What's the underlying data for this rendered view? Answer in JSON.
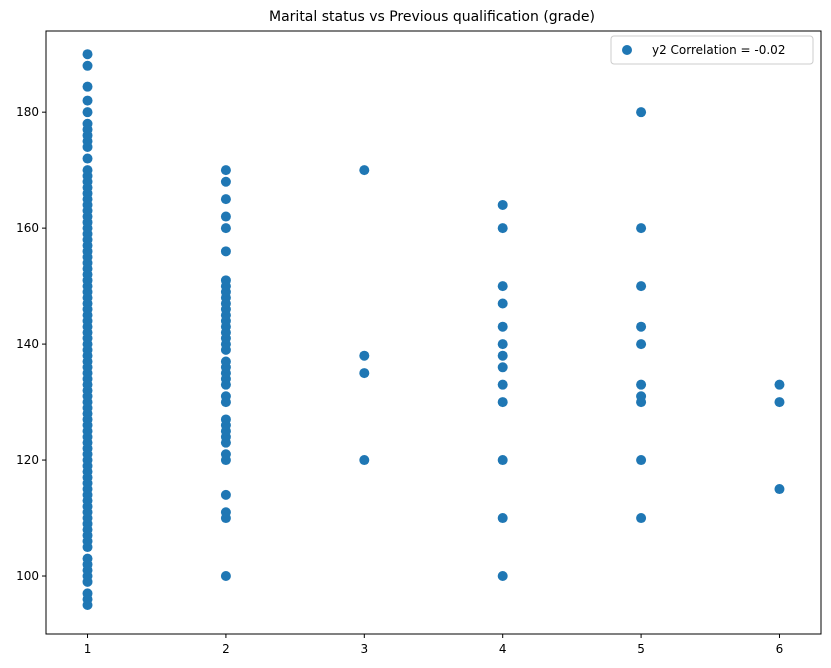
{
  "chart_data": {
    "type": "scatter",
    "title": "Marital status vs Previous qualification (grade)",
    "xlabel": "",
    "ylabel": "",
    "xlim": [
      0.7,
      6.3
    ],
    "ylim": [
      90,
      194
    ],
    "xticks": [
      1,
      2,
      3,
      4,
      5,
      6
    ],
    "yticks": [
      100,
      120,
      140,
      160,
      180
    ],
    "grid": false,
    "legend_position": "top-right",
    "marker_color": "#1f77b4",
    "series": [
      {
        "name": "y2 Correlation = -0.02",
        "points": [
          {
            "x": 1,
            "y": 95
          },
          {
            "x": 1,
            "y": 96
          },
          {
            "x": 1,
            "y": 97
          },
          {
            "x": 1,
            "y": 99
          },
          {
            "x": 1,
            "y": 100
          },
          {
            "x": 1,
            "y": 101
          },
          {
            "x": 1,
            "y": 102
          },
          {
            "x": 1,
            "y": 103
          },
          {
            "x": 1,
            "y": 105
          },
          {
            "x": 1,
            "y": 106
          },
          {
            "x": 1,
            "y": 107
          },
          {
            "x": 1,
            "y": 108
          },
          {
            "x": 1,
            "y": 109
          },
          {
            "x": 1,
            "y": 110
          },
          {
            "x": 1,
            "y": 111
          },
          {
            "x": 1,
            "y": 112
          },
          {
            "x": 1,
            "y": 113
          },
          {
            "x": 1,
            "y": 114
          },
          {
            "x": 1,
            "y": 115
          },
          {
            "x": 1,
            "y": 116
          },
          {
            "x": 1,
            "y": 117
          },
          {
            "x": 1,
            "y": 118
          },
          {
            "x": 1,
            "y": 119
          },
          {
            "x": 1,
            "y": 120
          },
          {
            "x": 1,
            "y": 121
          },
          {
            "x": 1,
            "y": 122
          },
          {
            "x": 1,
            "y": 123
          },
          {
            "x": 1,
            "y": 124
          },
          {
            "x": 1,
            "y": 125
          },
          {
            "x": 1,
            "y": 126
          },
          {
            "x": 1,
            "y": 127
          },
          {
            "x": 1,
            "y": 128
          },
          {
            "x": 1,
            "y": 129
          },
          {
            "x": 1,
            "y": 130
          },
          {
            "x": 1,
            "y": 131
          },
          {
            "x": 1,
            "y": 132
          },
          {
            "x": 1,
            "y": 133
          },
          {
            "x": 1,
            "y": 134
          },
          {
            "x": 1,
            "y": 135
          },
          {
            "x": 1,
            "y": 136
          },
          {
            "x": 1,
            "y": 137
          },
          {
            "x": 1,
            "y": 138
          },
          {
            "x": 1,
            "y": 139
          },
          {
            "x": 1,
            "y": 140
          },
          {
            "x": 1,
            "y": 141
          },
          {
            "x": 1,
            "y": 142
          },
          {
            "x": 1,
            "y": 143
          },
          {
            "x": 1,
            "y": 144
          },
          {
            "x": 1,
            "y": 145
          },
          {
            "x": 1,
            "y": 146
          },
          {
            "x": 1,
            "y": 147
          },
          {
            "x": 1,
            "y": 148
          },
          {
            "x": 1,
            "y": 149
          },
          {
            "x": 1,
            "y": 150
          },
          {
            "x": 1,
            "y": 151
          },
          {
            "x": 1,
            "y": 152
          },
          {
            "x": 1,
            "y": 153
          },
          {
            "x": 1,
            "y": 154
          },
          {
            "x": 1,
            "y": 155
          },
          {
            "x": 1,
            "y": 156
          },
          {
            "x": 1,
            "y": 157
          },
          {
            "x": 1,
            "y": 158
          },
          {
            "x": 1,
            "y": 159
          },
          {
            "x": 1,
            "y": 160
          },
          {
            "x": 1,
            "y": 161
          },
          {
            "x": 1,
            "y": 162
          },
          {
            "x": 1,
            "y": 163
          },
          {
            "x": 1,
            "y": 164
          },
          {
            "x": 1,
            "y": 165
          },
          {
            "x": 1,
            "y": 166
          },
          {
            "x": 1,
            "y": 167
          },
          {
            "x": 1,
            "y": 168
          },
          {
            "x": 1,
            "y": 169
          },
          {
            "x": 1,
            "y": 170
          },
          {
            "x": 1,
            "y": 172
          },
          {
            "x": 1,
            "y": 174
          },
          {
            "x": 1,
            "y": 175
          },
          {
            "x": 1,
            "y": 176
          },
          {
            "x": 1,
            "y": 177
          },
          {
            "x": 1,
            "y": 178
          },
          {
            "x": 1,
            "y": 180
          },
          {
            "x": 1,
            "y": 182
          },
          {
            "x": 1,
            "y": 184.4
          },
          {
            "x": 1,
            "y": 188
          },
          {
            "x": 1,
            "y": 190
          },
          {
            "x": 2,
            "y": 100
          },
          {
            "x": 2,
            "y": 110
          },
          {
            "x": 2,
            "y": 111
          },
          {
            "x": 2,
            "y": 114
          },
          {
            "x": 2,
            "y": 120
          },
          {
            "x": 2,
            "y": 121
          },
          {
            "x": 2,
            "y": 123
          },
          {
            "x": 2,
            "y": 124
          },
          {
            "x": 2,
            "y": 125
          },
          {
            "x": 2,
            "y": 126
          },
          {
            "x": 2,
            "y": 127
          },
          {
            "x": 2,
            "y": 130
          },
          {
            "x": 2,
            "y": 131
          },
          {
            "x": 2,
            "y": 133
          },
          {
            "x": 2,
            "y": 134
          },
          {
            "x": 2,
            "y": 135
          },
          {
            "x": 2,
            "y": 136
          },
          {
            "x": 2,
            "y": 137
          },
          {
            "x": 2,
            "y": 139
          },
          {
            "x": 2,
            "y": 140
          },
          {
            "x": 2,
            "y": 141
          },
          {
            "x": 2,
            "y": 142
          },
          {
            "x": 2,
            "y": 143
          },
          {
            "x": 2,
            "y": 144
          },
          {
            "x": 2,
            "y": 145
          },
          {
            "x": 2,
            "y": 146
          },
          {
            "x": 2,
            "y": 147
          },
          {
            "x": 2,
            "y": 148
          },
          {
            "x": 2,
            "y": 149
          },
          {
            "x": 2,
            "y": 150
          },
          {
            "x": 2,
            "y": 151
          },
          {
            "x": 2,
            "y": 156
          },
          {
            "x": 2,
            "y": 160
          },
          {
            "x": 2,
            "y": 162
          },
          {
            "x": 2,
            "y": 165
          },
          {
            "x": 2,
            "y": 168
          },
          {
            "x": 2,
            "y": 170
          },
          {
            "x": 3,
            "y": 120
          },
          {
            "x": 3,
            "y": 135
          },
          {
            "x": 3,
            "y": 138
          },
          {
            "x": 3,
            "y": 170
          },
          {
            "x": 4,
            "y": 100
          },
          {
            "x": 4,
            "y": 110
          },
          {
            "x": 4,
            "y": 120
          },
          {
            "x": 4,
            "y": 130
          },
          {
            "x": 4,
            "y": 133
          },
          {
            "x": 4,
            "y": 136
          },
          {
            "x": 4,
            "y": 138
          },
          {
            "x": 4,
            "y": 140
          },
          {
            "x": 4,
            "y": 143
          },
          {
            "x": 4,
            "y": 147
          },
          {
            "x": 4,
            "y": 150
          },
          {
            "x": 4,
            "y": 160
          },
          {
            "x": 4,
            "y": 164
          },
          {
            "x": 5,
            "y": 110
          },
          {
            "x": 5,
            "y": 120
          },
          {
            "x": 5,
            "y": 130
          },
          {
            "x": 5,
            "y": 131
          },
          {
            "x": 5,
            "y": 133
          },
          {
            "x": 5,
            "y": 140
          },
          {
            "x": 5,
            "y": 143
          },
          {
            "x": 5,
            "y": 150
          },
          {
            "x": 5,
            "y": 160
          },
          {
            "x": 5,
            "y": 180
          },
          {
            "x": 6,
            "y": 115
          },
          {
            "x": 6,
            "y": 130
          },
          {
            "x": 6,
            "y": 133
          }
        ]
      }
    ]
  }
}
